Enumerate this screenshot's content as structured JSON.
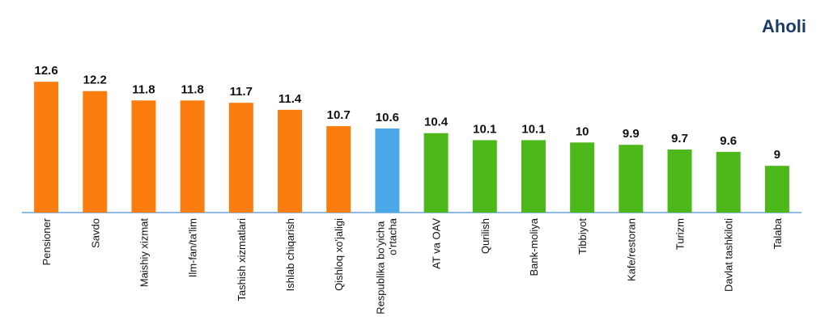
{
  "chart_data": {
    "type": "bar",
    "title": "Aholi",
    "categories": [
      "Pensioner",
      "Savdo",
      "Maishiy xizmat",
      "Ilm-fan/ta'lim",
      "Tashish xizmatlari",
      "Ishlab chiqarish",
      "Qishloq xo'jaligi",
      "Respublika bo'yicha o'rtacha",
      "AT va OAV",
      "Qurilish",
      "Bank-moliya",
      "Tibbiyot",
      "Kafe/restoran",
      "Turizm",
      "Davlat tashkiloti",
      "Talaba"
    ],
    "values": [
      12.6,
      12.2,
      11.8,
      11.8,
      11.7,
      11.4,
      10.7,
      10.6,
      10.4,
      10.1,
      10.1,
      10,
      9.9,
      9.7,
      9.6,
      9
    ],
    "colors": [
      "#fb7d0f",
      "#fb7d0f",
      "#fb7d0f",
      "#fb7d0f",
      "#fb7d0f",
      "#fb7d0f",
      "#fb7d0f",
      "#4aa8e8",
      "#4cb81a",
      "#4cb81a",
      "#4cb81a",
      "#4cb81a",
      "#4cb81a",
      "#4cb81a",
      "#4cb81a",
      "#4cb81a"
    ],
    "ylim": [
      7,
      13
    ]
  }
}
